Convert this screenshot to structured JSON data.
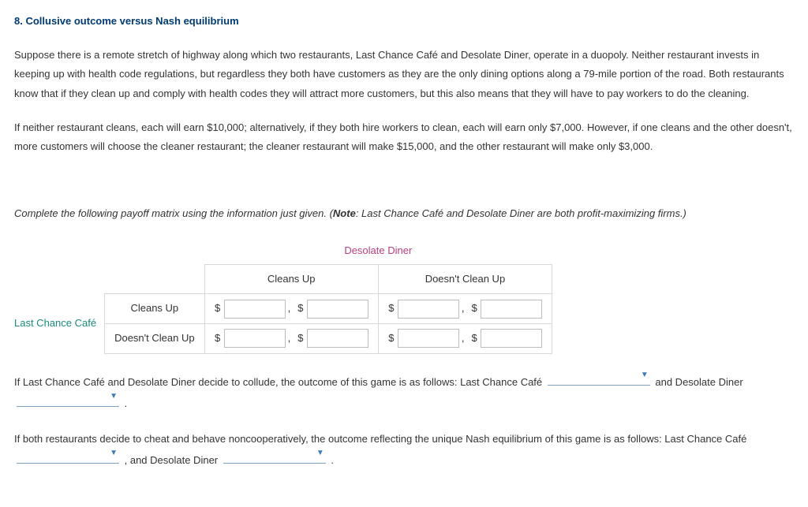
{
  "heading": "8. Collusive outcome versus Nash equilibrium",
  "para1": "Suppose there is a remote stretch of highway along which two restaurants, Last Chance Café and Desolate Diner, operate in a duopoly. Neither restaurant invests in keeping up with health code regulations, but regardless they both have customers as they are the only dining options along a 79-mile portion of the road. Both restaurants know that if they clean up and comply with health codes they will attract more customers, but this also means that they will have to pay workers to do the cleaning.",
  "para2": "If neither restaurant cleans, each will earn $10,000; alternatively, if they both hire workers to clean, each will earn only $7,000. However, if one cleans and the other doesn't, more customers will choose the cleaner restaurant; the cleaner restaurant will make $15,000, and the other restaurant will make only $3,000.",
  "instructions_pre": "Complete the following payoff matrix using the information just given. (",
  "instructions_note_label": "Note",
  "instructions_post": ": Last Chance Café and Desolate Diner are both profit-maximizing firms.)",
  "matrix": {
    "col_player": "Desolate Diner",
    "row_player": "Last Chance Café",
    "col_labels": [
      "Cleans Up",
      "Doesn't Clean Up"
    ],
    "row_labels": [
      "Cleans Up",
      "Doesn't Clean Up"
    ],
    "currency": "$",
    "comma": ","
  },
  "q1": {
    "pre": "If Last Chance Café and Desolate Diner decide to collude, the outcome of this game is as follows: Last Chance Café ",
    "mid": " and Desolate Diner ",
    "post": " ."
  },
  "q2": {
    "pre": "If both restaurants decide to cheat and behave noncooperatively, the outcome reflecting the unique Nash equilibrium of this game is as follows: Last Chance Café ",
    "mid": " , and Desolate Diner ",
    "post": " ."
  },
  "colors": {
    "heading": "#003b71",
    "col_player": "#b8407f",
    "row_player": "#1a8a7a",
    "dropdown_line": "#7da0c0",
    "dropdown_tri": "#3b7bbf",
    "border": "#d8d8d8",
    "text": "#333333"
  }
}
